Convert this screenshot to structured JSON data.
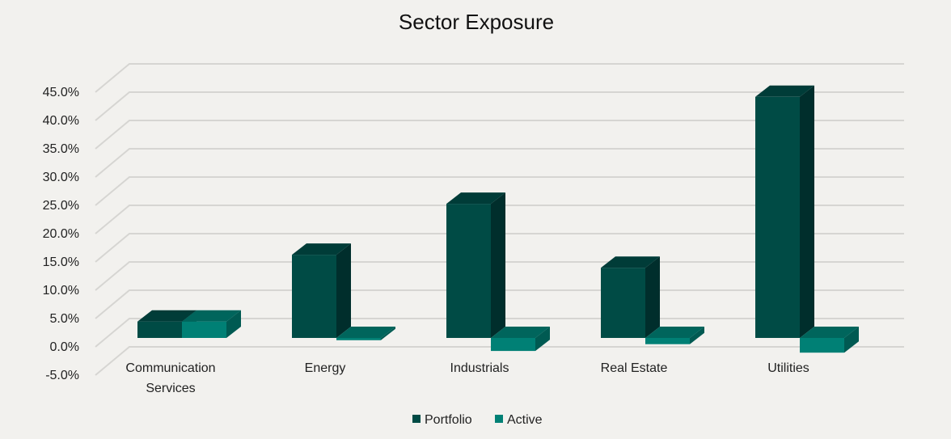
{
  "chart_data": {
    "type": "bar",
    "style": "3d-clustered-column",
    "title": "Sector Exposure",
    "categories": [
      "Communication Services",
      "Energy",
      "Industrials",
      "Real Estate",
      "Utilities"
    ],
    "category_lines": [
      [
        "Communication",
        "Services"
      ],
      [
        "Energy"
      ],
      [
        "Industrials"
      ],
      [
        "Real Estate"
      ],
      [
        "Utilities"
      ]
    ],
    "series": [
      {
        "name": "Portfolio",
        "values": [
          2.9,
          14.7,
          23.7,
          12.4,
          42.6
        ],
        "color": "#004b45"
      },
      {
        "name": "Active",
        "values": [
          2.9,
          -0.4,
          -2.3,
          -1.1,
          -2.6
        ],
        "color": "#008075"
      }
    ],
    "yticks": [
      -5,
      0,
      5,
      10,
      15,
      20,
      25,
      30,
      35,
      40,
      45
    ],
    "ytick_labels": [
      "-5.0%",
      "0.0%",
      "5.0%",
      "10.0%",
      "15.0%",
      "20.0%",
      "25.0%",
      "30.0%",
      "35.0%",
      "40.0%",
      "45.0%"
    ],
    "ylim": [
      -5,
      50
    ],
    "unit": "%",
    "grid": true,
    "legend_position": "bottom"
  }
}
